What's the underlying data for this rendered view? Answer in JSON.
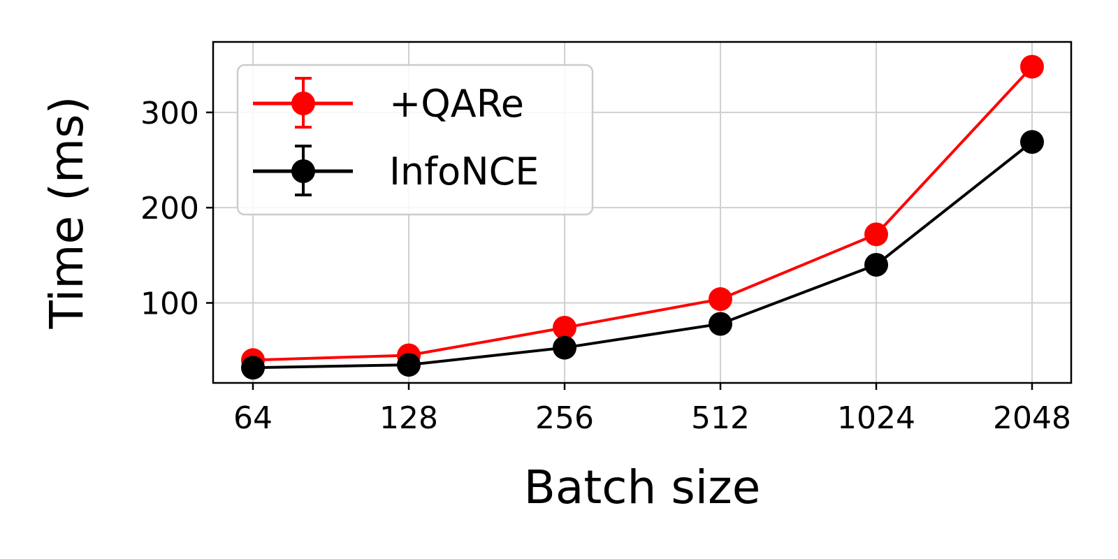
{
  "chart_data": {
    "type": "line",
    "xlabel": "Batch size",
    "ylabel": "Time (ms)",
    "categories": [
      "64",
      "128",
      "256",
      "512",
      "1024",
      "2048"
    ],
    "y_ticks": [
      100,
      200,
      300
    ],
    "ylim": [
      16,
      374
    ],
    "grid": true,
    "legend_position": "top-left",
    "series": [
      {
        "name": "+QARe",
        "color": "#ff0000",
        "marker": "circle",
        "error_bars": true,
        "values": [
          40,
          45,
          74,
          104,
          172,
          348
        ],
        "errors": [
          2,
          2,
          3,
          4,
          5,
          6
        ]
      },
      {
        "name": "InfoNCE",
        "color": "#000000",
        "marker": "circle",
        "error_bars": true,
        "values": [
          32,
          35,
          53,
          78,
          140,
          269
        ],
        "errors": [
          2,
          2,
          2,
          3,
          4,
          5
        ]
      }
    ]
  }
}
